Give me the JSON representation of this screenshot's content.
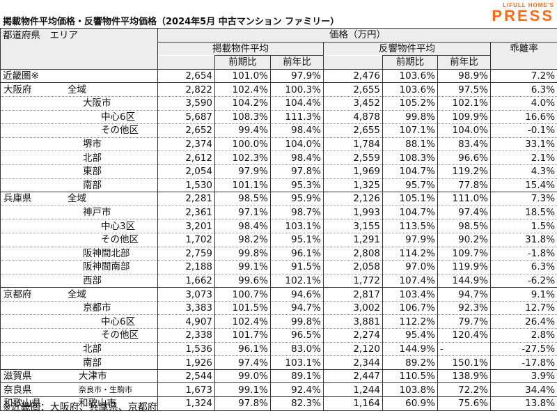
{
  "title": "掲載物件平均価格・反響物件平均価格（2024年5月 中古マンション ファミリー）",
  "brand": {
    "top": "LIFULL HOME'S",
    "main": "PRESS",
    "color": "#ff6a14"
  },
  "header": {
    "pref_area": "都道府県　エリア",
    "price": "価格（万円）",
    "listed": "掲載物件平均",
    "response": "反響物件平均",
    "divergence": "乖離率",
    "qoq": "前期比",
    "yoy": "前年比"
  },
  "chart_data": {
    "type": "table",
    "title": "掲載物件平均価格・反響物件平均価格（2024年5月 中古マンション ファミリー）",
    "columns": [
      "都道府県",
      "エリア",
      "掲載物件平均",
      "前期比",
      "前年比",
      "反響物件平均",
      "前期比",
      "前年比",
      "乖離率"
    ],
    "rows": [
      {
        "pref": "近畿圏※",
        "area": "",
        "level": 0,
        "listed": "2,654",
        "l_qoq": "101.0%",
        "l_yoy": "97.9%",
        "resp": "2,476",
        "r_qoq": "103.6%",
        "r_yoy": "98.9%",
        "div": "7.2%"
      },
      {
        "pref": "大阪府",
        "area": "全域",
        "level": 0,
        "listed": "2,822",
        "l_qoq": "102.4%",
        "l_yoy": "100.3%",
        "resp": "2,655",
        "r_qoq": "103.6%",
        "r_yoy": "97.5%",
        "div": "6.3%"
      },
      {
        "pref": "",
        "area": "大阪市",
        "level": 1,
        "listed": "3,590",
        "l_qoq": "104.2%",
        "l_yoy": "104.4%",
        "resp": "3,452",
        "r_qoq": "105.2%",
        "r_yoy": "102.1%",
        "div": "4.0%"
      },
      {
        "pref": "",
        "area": "中心6区",
        "level": 2,
        "listed": "5,687",
        "l_qoq": "108.3%",
        "l_yoy": "111.3%",
        "resp": "4,878",
        "r_qoq": "99.8%",
        "r_yoy": "109.9%",
        "div": "16.6%"
      },
      {
        "pref": "",
        "area": "その他区",
        "level": 2,
        "listed": "2,652",
        "l_qoq": "99.4%",
        "l_yoy": "98.4%",
        "resp": "2,655",
        "r_qoq": "107.1%",
        "r_yoy": "104.0%",
        "div": "-0.1%"
      },
      {
        "pref": "",
        "area": "堺市",
        "level": 1,
        "listed": "2,374",
        "l_qoq": "100.0%",
        "l_yoy": "104.0%",
        "resp": "1,784",
        "r_qoq": "88.1%",
        "r_yoy": "83.4%",
        "div": "33.1%"
      },
      {
        "pref": "",
        "area": "北部",
        "level": 1,
        "listed": "2,612",
        "l_qoq": "102.3%",
        "l_yoy": "98.4%",
        "resp": "2,559",
        "r_qoq": "108.3%",
        "r_yoy": "96.6%",
        "div": "2.1%"
      },
      {
        "pref": "",
        "area": "東部",
        "level": 1,
        "listed": "2,054",
        "l_qoq": "97.9%",
        "l_yoy": "97.8%",
        "resp": "1,969",
        "r_qoq": "104.7%",
        "r_yoy": "119.2%",
        "div": "4.3%"
      },
      {
        "pref": "",
        "area": "南部",
        "level": 1,
        "listed": "1,530",
        "l_qoq": "101.1%",
        "l_yoy": "95.3%",
        "resp": "1,325",
        "r_qoq": "95.7%",
        "r_yoy": "77.8%",
        "div": "15.4%"
      },
      {
        "pref": "兵庫県",
        "area": "全域",
        "level": 0,
        "listed": "2,281",
        "l_qoq": "98.5%",
        "l_yoy": "95.9%",
        "resp": "2,126",
        "r_qoq": "105.1%",
        "r_yoy": "111.0%",
        "div": "7.3%"
      },
      {
        "pref": "",
        "area": "神戸市",
        "level": 1,
        "listed": "2,361",
        "l_qoq": "97.1%",
        "l_yoy": "98.7%",
        "resp": "1,993",
        "r_qoq": "104.7%",
        "r_yoy": "97.4%",
        "div": "18.5%"
      },
      {
        "pref": "",
        "area": "中心3区",
        "level": 2,
        "listed": "3,201",
        "l_qoq": "98.4%",
        "l_yoy": "103.1%",
        "resp": "3,155",
        "r_qoq": "113.5%",
        "r_yoy": "98.5%",
        "div": "1.5%"
      },
      {
        "pref": "",
        "area": "その他区",
        "level": 2,
        "listed": "1,702",
        "l_qoq": "98.2%",
        "l_yoy": "95.1%",
        "resp": "1,291",
        "r_qoq": "97.9%",
        "r_yoy": "90.2%",
        "div": "31.8%"
      },
      {
        "pref": "",
        "area": "阪神間北部",
        "level": 1,
        "listed": "2,759",
        "l_qoq": "99.8%",
        "l_yoy": "96.1%",
        "resp": "2,808",
        "r_qoq": "114.2%",
        "r_yoy": "109.7%",
        "div": "-1.8%"
      },
      {
        "pref": "",
        "area": "阪神間南部",
        "level": 1,
        "listed": "2,188",
        "l_qoq": "99.1%",
        "l_yoy": "91.5%",
        "resp": "2,058",
        "r_qoq": "97.0%",
        "r_yoy": "119.9%",
        "div": "6.3%"
      },
      {
        "pref": "",
        "area": "西部",
        "level": 1,
        "listed": "1,662",
        "l_qoq": "99.6%",
        "l_yoy": "102.1%",
        "resp": "1,772",
        "r_qoq": "107.4%",
        "r_yoy": "144.9%",
        "div": "-6.2%"
      },
      {
        "pref": "京都府",
        "area": "全域",
        "level": 0,
        "listed": "3,073",
        "l_qoq": "100.7%",
        "l_yoy": "94.6%",
        "resp": "2,817",
        "r_qoq": "103.4%",
        "r_yoy": "94.7%",
        "div": "9.1%"
      },
      {
        "pref": "",
        "area": "京都市",
        "level": 1,
        "listed": "3,383",
        "l_qoq": "101.5%",
        "l_yoy": "94.7%",
        "resp": "3,002",
        "r_qoq": "106.7%",
        "r_yoy": "92.3%",
        "div": "12.7%"
      },
      {
        "pref": "",
        "area": "中心6区",
        "level": 2,
        "listed": "4,907",
        "l_qoq": "102.4%",
        "l_yoy": "99.8%",
        "resp": "3,881",
        "r_qoq": "112.2%",
        "r_yoy": "79.7%",
        "div": "26.4%"
      },
      {
        "pref": "",
        "area": "その他区",
        "level": 2,
        "listed": "2,338",
        "l_qoq": "101.7%",
        "l_yoy": "96.5%",
        "resp": "2,274",
        "r_qoq": "95.4%",
        "r_yoy": "120.4%",
        "div": "2.8%"
      },
      {
        "pref": "",
        "area": "北部",
        "level": 1,
        "listed": "1,536",
        "l_qoq": "96.1%",
        "l_yoy": "83.0%",
        "resp": "2,120",
        "r_qoq": "144.9%",
        "r_yoy": "-",
        "div": "-27.5%"
      },
      {
        "pref": "",
        "area": "南部",
        "level": 1,
        "listed": "1,926",
        "l_qoq": "97.4%",
        "l_yoy": "103.1%",
        "resp": "2,344",
        "r_qoq": "89.2%",
        "r_yoy": "150.1%",
        "div": "-17.8%"
      },
      {
        "pref": "滋賀県",
        "area": "大津市",
        "level": 3,
        "listed": "2,544",
        "l_qoq": "99.0%",
        "l_yoy": "89.1%",
        "resp": "2,447",
        "r_qoq": "110.5%",
        "r_yoy": "138.9%",
        "div": "3.9%"
      },
      {
        "pref": "奈良県",
        "area": "奈良市・生駒市",
        "level": 3,
        "small": true,
        "listed": "1,673",
        "l_qoq": "99.1%",
        "l_yoy": "92.4%",
        "resp": "1,244",
        "r_qoq": "103.8%",
        "r_yoy": "72.2%",
        "div": "34.4%"
      },
      {
        "pref": "和歌山県",
        "area": "和歌山市",
        "level": 3,
        "listed": "1,324",
        "l_qoq": "97.8%",
        "l_yoy": "82.3%",
        "resp": "1,164",
        "r_qoq": "60.9%",
        "r_yoy": "75.6%",
        "div": "13.8%"
      }
    ]
  },
  "footnote": "※近畿圏：大阪府、兵庫県、京都府"
}
